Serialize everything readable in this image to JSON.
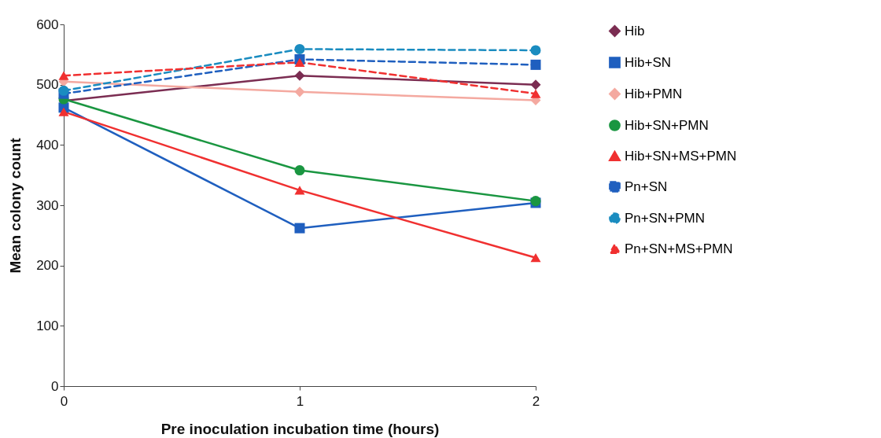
{
  "chart_data": {
    "type": "line",
    "xlabel": "Pre inoculation incubation time (hours)",
    "ylabel": "Mean colony count",
    "x": [
      0,
      1,
      2
    ],
    "xlim": [
      0,
      2
    ],
    "xticks": [
      0,
      1,
      2
    ],
    "ylim": [
      0,
      600
    ],
    "yticks": [
      0,
      100,
      200,
      300,
      400,
      500,
      600
    ],
    "grid": false,
    "legend": "right",
    "series": [
      {
        "name": "Hib",
        "color": "#7b2d52",
        "marker": "diamond",
        "line_style": "solid",
        "values": [
          473,
          515,
          500
        ]
      },
      {
        "name": "Hib+SN",
        "color": "#1f5fbf",
        "marker": "square",
        "line_style": "solid",
        "values": [
          462,
          262,
          304
        ]
      },
      {
        "name": "Hib+PMN",
        "color": "#f4a9a0",
        "marker": "diamond",
        "line_style": "solid",
        "values": [
          505,
          488,
          474
        ]
      },
      {
        "name": "Hib+SN+PMN",
        "color": "#1a9641",
        "marker": "circle",
        "line_style": "solid",
        "values": [
          476,
          358,
          307
        ]
      },
      {
        "name": "Hib+SN+MS+PMN",
        "color": "#f03030",
        "marker": "triangle",
        "line_style": "solid",
        "values": [
          455,
          325,
          213
        ]
      },
      {
        "name": "Pn+SN",
        "color": "#1f5fbf",
        "marker": "square",
        "line_style": "dashed",
        "values": [
          485,
          542,
          533
        ]
      },
      {
        "name": "Pn+SN+PMN",
        "color": "#1a8cc0",
        "marker": "circle",
        "line_style": "dashed",
        "values": [
          490,
          559,
          557
        ]
      },
      {
        "name": "Pn+SN+MS+PMN",
        "color": "#f03030",
        "marker": "triangle",
        "line_style": "dashed",
        "values": [
          515,
          537,
          485
        ]
      }
    ]
  }
}
